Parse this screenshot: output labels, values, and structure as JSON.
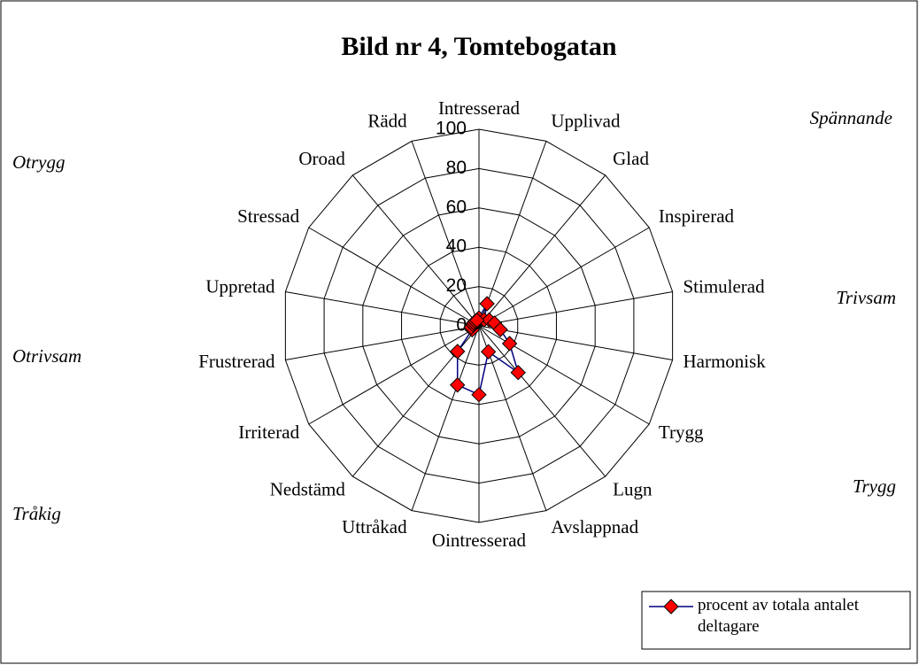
{
  "chart_data": {
    "type": "radar",
    "title": "Bild nr 4, Tomtebogatan",
    "categories": [
      "Intresserad",
      "Upplivad",
      "Glad",
      "Inspirerad",
      "Stimulerad",
      "Harmonisk",
      "Trygg",
      "Lugn",
      "Avslappnad",
      "Ointresserad",
      "Uttråkad",
      "Nedstämd",
      "Irriterad",
      "Frustrerad",
      "Uppretad",
      "Stressad",
      "Oroad",
      "Rädd"
    ],
    "series": [
      {
        "name": "procent av totala antalet deltagare",
        "color": "#000080",
        "marker_color": "#ff0000",
        "values": [
          4,
          12,
          4,
          6,
          8,
          11,
          18,
          31,
          14,
          35,
          32,
          17,
          4,
          4,
          3,
          3,
          3,
          3
        ]
      }
    ],
    "ylim": [
      0,
      100
    ],
    "yticks": [
      0,
      20,
      40,
      60,
      80,
      100
    ],
    "annotations": [
      "Spännande",
      "Otrygg",
      "Trivsam",
      "Otrivsam",
      "Trygg",
      "Tråkig"
    ]
  }
}
